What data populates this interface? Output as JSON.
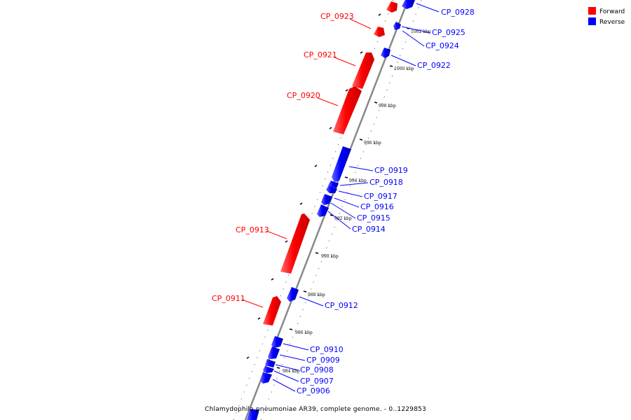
{
  "legend": {
    "forward": {
      "label": "Forward",
      "color": "#ff0000"
    },
    "reverse": {
      "label": "Reverse",
      "color": "#0000ff"
    }
  },
  "caption": "Chlamydophila pneumoniae AR39, complete genome. - 0..1229853",
  "genes": [
    {
      "id": "CP_0928",
      "strand": "reverse"
    },
    {
      "id": "CP_0923",
      "strand": "forward"
    },
    {
      "id": "CP_0925",
      "strand": "reverse"
    },
    {
      "id": "CP_0924",
      "strand": "reverse"
    },
    {
      "id": "CP_0921",
      "strand": "forward"
    },
    {
      "id": "CP_0922",
      "strand": "reverse"
    },
    {
      "id": "CP_0920",
      "strand": "forward"
    },
    {
      "id": "CP_0919",
      "strand": "reverse"
    },
    {
      "id": "CP_0918",
      "strand": "reverse"
    },
    {
      "id": "CP_0917",
      "strand": "reverse"
    },
    {
      "id": "CP_0916",
      "strand": "reverse"
    },
    {
      "id": "CP_0915",
      "strand": "reverse"
    },
    {
      "id": "CP_0914",
      "strand": "reverse"
    },
    {
      "id": "CP_0913",
      "strand": "forward"
    },
    {
      "id": "CP_0912",
      "strand": "reverse"
    },
    {
      "id": "CP_0911",
      "strand": "forward"
    },
    {
      "id": "CP_0910",
      "strand": "reverse"
    },
    {
      "id": "CP_0909",
      "strand": "reverse"
    },
    {
      "id": "CP_0908",
      "strand": "reverse"
    },
    {
      "id": "CP_0907",
      "strand": "reverse"
    },
    {
      "id": "CP_0906",
      "strand": "reverse"
    }
  ],
  "scale_labels": [
    "1002 kbp",
    "1000 kbp",
    "998 kbp",
    "996 kbp",
    "994 kbp",
    "992 kbp",
    "990 kbp",
    "988 kbp",
    "986 kbp",
    "984 kbp"
  ]
}
